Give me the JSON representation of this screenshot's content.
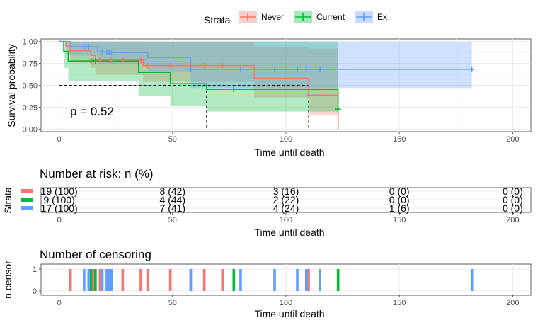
{
  "legend": {
    "title": "Strata",
    "entries": [
      {
        "name": "Never",
        "color": "#F8766D"
      },
      {
        "name": "Current",
        "color": "#00BA38"
      },
      {
        "name": "Ex",
        "color": "#619CFF"
      }
    ]
  },
  "chart_data": [
    {
      "type": "line",
      "subtype": "kaplan-meier",
      "xlabel": "Time until death",
      "ylabel": "Survival probability",
      "xlim": [
        -8,
        208
      ],
      "ylim": [
        -0.03,
        1.03
      ],
      "x_ticks": [
        0,
        50,
        100,
        150,
        200
      ],
      "y_ticks": [
        0.0,
        0.25,
        0.5,
        0.75,
        1.0
      ],
      "y_tick_labels": [
        "0.00",
        "0.25",
        "0.50",
        "0.75",
        "1.00"
      ],
      "pvalue_label": "p = 0.52",
      "median_line_y": 0.5,
      "median_times": [
        65,
        110
      ],
      "series": [
        {
          "name": "Never",
          "color": "#F8766D",
          "steps": [
            [
              0,
              1.0
            ],
            [
              3,
              0.947
            ],
            [
              5,
              0.895
            ],
            [
              14,
              0.842
            ],
            [
              16,
              0.789
            ],
            [
              37,
              0.725
            ],
            [
              86,
              0.58
            ],
            [
              110,
              0.387
            ],
            [
              123,
              0.0
            ]
          ],
          "ci_steps": [
            [
              0,
              1.0,
              1.0
            ],
            [
              3,
              0.85,
              1.0
            ],
            [
              5,
              0.76,
              1.0
            ],
            [
              14,
              0.7,
              1.0
            ],
            [
              16,
              0.62,
              1.0
            ],
            [
              37,
              0.54,
              0.99
            ],
            [
              86,
              0.36,
              0.94
            ],
            [
              110,
              0.16,
              0.92
            ],
            [
              123,
              0.16,
              0.92
            ]
          ],
          "censor": [
            [
              5,
              0.895
            ],
            [
              15,
              0.789
            ],
            [
              18,
              0.789
            ],
            [
              23,
              0.789
            ],
            [
              28,
              0.789
            ],
            [
              36,
              0.789
            ],
            [
              39,
              0.725
            ],
            [
              49,
              0.725
            ],
            [
              58,
              0.725
            ],
            [
              64,
              0.725
            ],
            [
              72,
              0.725
            ],
            [
              110,
              0.387
            ]
          ]
        },
        {
          "name": "Current",
          "color": "#00BA38",
          "steps": [
            [
              0,
              1.0
            ],
            [
              2,
              0.889
            ],
            [
              4,
              0.778
            ],
            [
              17,
              0.778
            ],
            [
              35,
              0.648
            ],
            [
              49,
              0.519
            ],
            [
              65,
              0.454
            ],
            [
              123,
              0.227
            ]
          ],
          "ci_steps": [
            [
              0,
              1.0,
              1.0
            ],
            [
              2,
              0.7,
              1.0
            ],
            [
              4,
              0.55,
              1.0
            ],
            [
              35,
              0.38,
              1.0
            ],
            [
              49,
              0.26,
              1.0
            ],
            [
              65,
              0.2,
              1.0
            ],
            [
              123,
              0.2,
              1.0
            ]
          ],
          "censor": [
            [
              14,
              0.778
            ],
            [
              16,
              0.778
            ],
            [
              77,
              0.454
            ],
            [
              123,
              0.227
            ]
          ]
        },
        {
          "name": "Ex",
          "color": "#619CFF",
          "steps": [
            [
              0,
              1.0
            ],
            [
              5,
              0.941
            ],
            [
              14,
              0.941
            ],
            [
              17,
              0.882
            ],
            [
              22,
              0.876
            ],
            [
              39,
              0.82
            ],
            [
              58,
              0.683
            ],
            [
              182,
              0.683
            ]
          ],
          "ci_steps": [
            [
              0,
              1.0,
              1.0
            ],
            [
              5,
              0.84,
              1.0
            ],
            [
              17,
              0.74,
              1.0
            ],
            [
              39,
              0.66,
              1.0
            ],
            [
              58,
              0.47,
              1.0
            ],
            [
              182,
              0.47,
              1.0
            ]
          ],
          "censor": [
            [
              11,
              0.941
            ],
            [
              13,
              0.941
            ],
            [
              19,
              0.882
            ],
            [
              21,
              0.882
            ],
            [
              22,
              0.876
            ],
            [
              23,
              0.876
            ],
            [
              58,
              0.683
            ],
            [
              80,
              0.683
            ],
            [
              95,
              0.683
            ],
            [
              105,
              0.683
            ],
            [
              109,
              0.683
            ],
            [
              115,
              0.683
            ],
            [
              182,
              0.683
            ]
          ]
        }
      ]
    },
    {
      "type": "table",
      "title": "Number at risk: n (%)",
      "xlabel": "Time until death",
      "ylabel": "Strata",
      "time_points": [
        0,
        50,
        100,
        150,
        200
      ],
      "x_ticks": [
        0,
        50,
        100,
        150,
        200
      ],
      "rows": [
        {
          "name": "Never",
          "color": "#F8766D",
          "cells": [
            "19 (100)",
            "8 (42)",
            "3 (16)",
            "0 (0)",
            "0 (0)"
          ]
        },
        {
          "name": "Current",
          "color": "#00BA38",
          "cells": [
            "9 (100)",
            "4 (44)",
            "2 (22)",
            "0 (0)",
            "0 (0)"
          ]
        },
        {
          "name": "Ex",
          "color": "#619CFF",
          "cells": [
            "17 (100)",
            "7 (41)",
            "4 (24)",
            "1 (6)",
            "0 (0)"
          ]
        }
      ]
    },
    {
      "type": "bar",
      "title": "Number of censoring",
      "xlabel": "Time until death",
      "ylabel": "n.censor",
      "y_ticks": [
        0,
        1
      ],
      "x_ticks": [
        0,
        50,
        100,
        150,
        200
      ],
      "series": [
        {
          "name": "Never",
          "color": "#F8766D",
          "times": [
            5,
            15,
            18,
            23,
            28,
            36,
            39,
            49,
            58,
            64,
            72,
            110
          ]
        },
        {
          "name": "Current",
          "color": "#00BA38",
          "times": [
            14,
            16,
            77,
            123
          ]
        },
        {
          "name": "Ex",
          "color": "#619CFF",
          "times": [
            11,
            13,
            19,
            21,
            22,
            23,
            58,
            80,
            95,
            105,
            109,
            115,
            182
          ]
        }
      ]
    }
  ]
}
